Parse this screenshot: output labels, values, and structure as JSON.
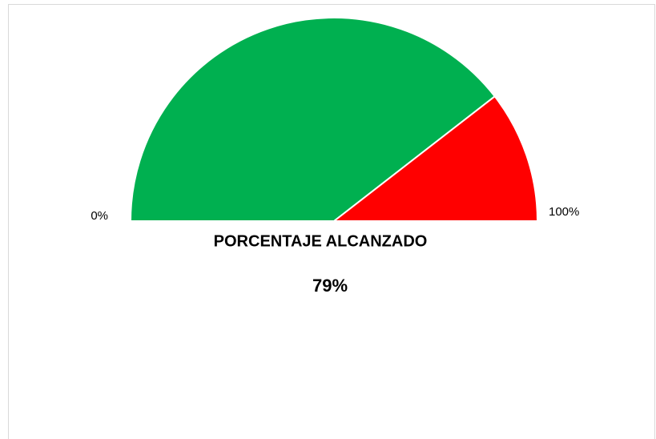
{
  "chart_data": {
    "type": "gauge",
    "title": "PORCENTAJE ALCANZADO",
    "values": [
      79
    ],
    "value_labels": [
      "79%"
    ],
    "colors": [
      "#00b050",
      "#ff0000"
    ],
    "xlim": [
      0,
      100
    ],
    "xticks": [
      {
        "value": 0,
        "label": "0%"
      },
      {
        "value": 100,
        "label": "100%"
      }
    ]
  }
}
